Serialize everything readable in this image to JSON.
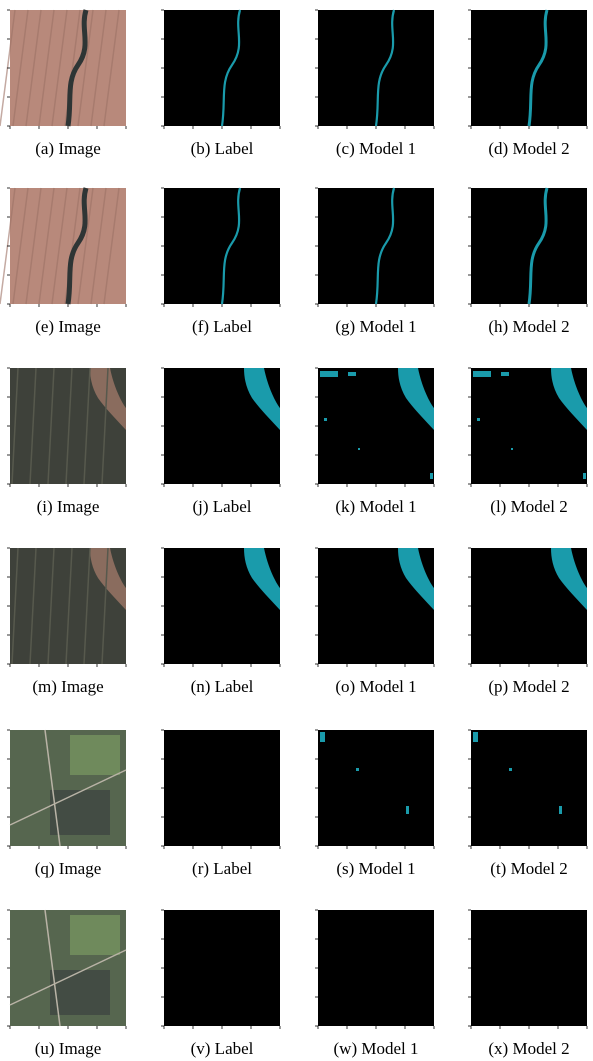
{
  "figure": {
    "rows": [
      [
        "(a) Image",
        "(b) Label",
        "(c) Model 1",
        "(d) Model 2"
      ],
      [
        "(e) Image",
        "(f) Label",
        "(g) Model 1",
        "(h) Model 2"
      ],
      [
        "(i) Image",
        "(j) Label",
        "(k) Model 1",
        "(l) Model 2"
      ],
      [
        "(m) Image",
        "(n) Label",
        "(o) Model 1",
        "(p) Model 2"
      ],
      [
        "(q) Image",
        "(r) Label",
        "(s) Model 1",
        "(t) Model 2"
      ],
      [
        "(u) Image",
        "(v) Label",
        "(w) Model 1",
        "(x) Model 2"
      ]
    ]
  }
}
